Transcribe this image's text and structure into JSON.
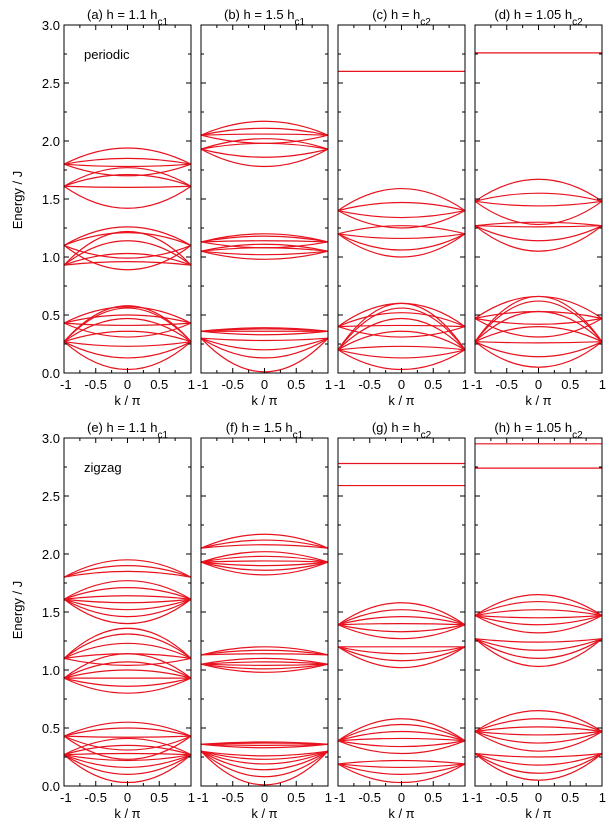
{
  "figure": {
    "ylabel": "Energy / J",
    "xlabel": "k / π",
    "y_ticks": [
      "0.0",
      "0.5",
      "1.0",
      "1.5",
      "2.0",
      "2.5",
      "3.0"
    ],
    "x_ticks": [
      "-1",
      "-0.5",
      "0",
      "0.5",
      "1"
    ],
    "line_color": "#e8121e"
  },
  "chart_data": [
    {
      "type": "line",
      "panel": "(a)",
      "title": "h = 1.1 h",
      "title_sub": "c1",
      "note": "periodic",
      "xlim": [
        -1,
        1
      ],
      "ylim": [
        0,
        3
      ],
      "series": [
        {
          "values": [
            [
              0.27,
              0.03
            ],
            [
              0.27,
              0.13
            ],
            [
              0.27,
              0.23
            ],
            [
              0.27,
              0.36
            ],
            [
              0.27,
              0.47
            ],
            [
              0.27,
              0.56
            ],
            [
              0.27,
              0.58
            ]
          ]
        },
        {
          "values": [
            [
              0.43,
              0.31
            ],
            [
              0.43,
              0.41
            ],
            [
              0.43,
              0.5
            ],
            [
              0.43,
              0.57
            ]
          ]
        },
        {
          "values": [
            [
              0.93,
              0.96
            ],
            [
              0.93,
              1.03
            ],
            [
              0.93,
              1.14
            ],
            [
              0.93,
              1.22
            ]
          ]
        },
        {
          "values": [
            [
              1.1,
              0.89
            ],
            [
              1.1,
              0.99
            ],
            [
              1.1,
              1.21
            ],
            [
              1.1,
              1.26
            ]
          ]
        },
        {
          "values": [
            [
              1.61,
              1.42
            ],
            [
              1.61,
              1.6
            ],
            [
              1.61,
              1.71
            ],
            [
              1.61,
              1.77
            ]
          ]
        },
        {
          "values": [
            [
              1.8,
              1.7
            ],
            [
              1.8,
              1.78
            ],
            [
              1.8,
              1.85
            ],
            [
              1.8,
              1.94
            ]
          ]
        }
      ]
    },
    {
      "type": "line",
      "panel": "(b)",
      "title": "h = 1.5 h",
      "title_sub": "c1",
      "note": "",
      "xlim": [
        -1,
        1
      ],
      "ylim": [
        0,
        3
      ],
      "series": [
        {
          "values": [
            [
              0.3,
              0.01
            ],
            [
              0.3,
              0.13
            ],
            [
              0.3,
              0.2
            ],
            [
              0.3,
              0.28
            ]
          ]
        },
        {
          "values": [
            [
              0.36,
              0.33
            ],
            [
              0.36,
              0.36
            ],
            [
              0.36,
              0.38
            ],
            [
              0.36,
              0.39
            ]
          ]
        },
        {
          "values": [
            [
              1.05,
              0.98
            ],
            [
              1.05,
              1.02
            ],
            [
              1.05,
              1.08
            ],
            [
              1.05,
              1.11
            ]
          ]
        },
        {
          "values": [
            [
              1.13,
              1.08
            ],
            [
              1.13,
              1.14
            ],
            [
              1.13,
              1.18
            ],
            [
              1.13,
              1.2
            ]
          ]
        },
        {
          "values": [
            [
              1.93,
              1.78
            ],
            [
              1.93,
              1.86
            ],
            [
              1.93,
              1.98
            ],
            [
              1.93,
              2.02
            ]
          ]
        },
        {
          "values": [
            [
              2.05,
              1.98
            ],
            [
              2.05,
              2.06
            ],
            [
              2.05,
              2.11
            ],
            [
              2.05,
              2.17
            ]
          ]
        }
      ]
    },
    {
      "type": "line",
      "panel": "(c)",
      "title": "h = h",
      "title_sub": "c2",
      "note": "",
      "xlim": [
        -1,
        1
      ],
      "ylim": [
        0,
        3
      ],
      "series": [
        {
          "values": [
            [
              0.2,
              0.03
            ],
            [
              0.2,
              0.13
            ],
            [
              0.2,
              0.23
            ],
            [
              0.2,
              0.36
            ],
            [
              0.2,
              0.47
            ],
            [
              0.2,
              0.56
            ],
            [
              0.2,
              0.6
            ]
          ]
        },
        {
          "values": [
            [
              0.4,
              0.31
            ],
            [
              0.4,
              0.41
            ],
            [
              0.4,
              0.52
            ],
            [
              0.4,
              0.6
            ]
          ]
        },
        {
          "values": [
            [
              1.2,
              1.0
            ],
            [
              1.2,
              1.06
            ],
            [
              1.2,
              1.16
            ],
            [
              1.2,
              1.27
            ]
          ]
        },
        {
          "values": [
            [
              1.4,
              1.25
            ],
            [
              1.4,
              1.34
            ],
            [
              1.4,
              1.47
            ],
            [
              1.4,
              1.59
            ]
          ]
        },
        {
          "values": [
            [
              2.6
            ]
          ]
        }
      ]
    },
    {
      "type": "line",
      "panel": "(d)",
      "title": "h = 1.05 h",
      "title_sub": "c2",
      "note": "",
      "xlim": [
        -1,
        1
      ],
      "ylim": [
        0,
        3
      ],
      "series": [
        {
          "values": [
            [
              0.27,
              0.05
            ],
            [
              0.27,
              0.14
            ],
            [
              0.27,
              0.26
            ],
            [
              0.27,
              0.4
            ],
            [
              0.27,
              0.53
            ],
            [
              0.27,
              0.62
            ],
            [
              0.27,
              0.66
            ]
          ]
        },
        {
          "values": [
            [
              0.47,
              0.31
            ],
            [
              0.47,
              0.42
            ],
            [
              0.47,
              0.53
            ],
            [
              0.47,
              0.66
            ]
          ]
        },
        {
          "values": [
            [
              1.27,
              1.05
            ],
            [
              1.27,
              1.14
            ],
            [
              1.27,
              1.26
            ],
            [
              1.27,
              1.3
            ]
          ]
        },
        {
          "values": [
            [
              1.48,
              1.28
            ],
            [
              1.48,
              1.44
            ],
            [
              1.48,
              1.55
            ],
            [
              1.48,
              1.67
            ]
          ]
        },
        {
          "values": [
            [
              2.76
            ]
          ]
        }
      ]
    },
    {
      "type": "line",
      "panel": "(e)",
      "title": "h = 1.1 h",
      "title_sub": "c1",
      "note": "zigzag",
      "xlim": [
        -1,
        1
      ],
      "ylim": [
        0,
        3
      ],
      "series": [
        {
          "values": [
            [
              0.27,
              0.03
            ],
            [
              0.27,
              0.1
            ],
            [
              0.27,
              0.16
            ],
            [
              0.27,
              0.22
            ],
            [
              0.27,
              0.28
            ],
            [
              0.27,
              0.35
            ],
            [
              0.27,
              0.41
            ]
          ]
        },
        {
          "values": [
            [
              0.43,
              0.23
            ],
            [
              0.43,
              0.31
            ],
            [
              0.43,
              0.42
            ],
            [
              0.43,
              0.5
            ],
            [
              0.43,
              0.55
            ]
          ]
        },
        {
          "values": [
            [
              0.93,
              0.8
            ],
            [
              0.93,
              0.86
            ],
            [
              0.93,
              0.93
            ],
            [
              0.93,
              1.0
            ],
            [
              0.93,
              1.07
            ],
            [
              0.93,
              1.14
            ]
          ]
        },
        {
          "values": [
            [
              1.1,
              1.04
            ],
            [
              1.1,
              1.14
            ],
            [
              1.1,
              1.23
            ],
            [
              1.1,
              1.31
            ],
            [
              1.1,
              1.36
            ]
          ]
        },
        {
          "values": [
            [
              1.61,
              1.4
            ],
            [
              1.61,
              1.46
            ],
            [
              1.61,
              1.52
            ],
            [
              1.61,
              1.58
            ],
            [
              1.61,
              1.64
            ],
            [
              1.61,
              1.71
            ],
            [
              1.61,
              1.77
            ]
          ]
        },
        {
          "values": [
            [
              1.8,
              1.85
            ],
            [
              1.8,
              1.9
            ],
            [
              1.8,
              1.95
            ]
          ]
        }
      ]
    },
    {
      "type": "line",
      "panel": "(f)",
      "title": "h = 1.5 h",
      "title_sub": "c1",
      "note": "",
      "xlim": [
        -1,
        1
      ],
      "ylim": [
        0,
        3
      ],
      "series": [
        {
          "values": [
            [
              0.3,
              0.01
            ],
            [
              0.3,
              0.08
            ],
            [
              0.3,
              0.14
            ],
            [
              0.3,
              0.19
            ],
            [
              0.3,
              0.23
            ],
            [
              0.3,
              0.26
            ]
          ]
        },
        {
          "values": [
            [
              0.36,
              0.33
            ],
            [
              0.36,
              0.35
            ],
            [
              0.36,
              0.37
            ],
            [
              0.36,
              0.38
            ]
          ]
        },
        {
          "values": [
            [
              1.05,
              0.98
            ],
            [
              1.05,
              1.01
            ],
            [
              1.05,
              1.04
            ],
            [
              1.05,
              1.07
            ],
            [
              1.05,
              1.1
            ]
          ]
        },
        {
          "values": [
            [
              1.13,
              1.14
            ],
            [
              1.13,
              1.17
            ],
            [
              1.13,
              1.2
            ]
          ]
        },
        {
          "values": [
            [
              1.93,
              1.82
            ],
            [
              1.93,
              1.86
            ],
            [
              1.93,
              1.9
            ],
            [
              1.93,
              1.94
            ],
            [
              1.93,
              1.98
            ],
            [
              1.93,
              2.02
            ]
          ]
        },
        {
          "values": [
            [
              2.05,
              2.08
            ],
            [
              2.05,
              2.12
            ],
            [
              2.05,
              2.17
            ]
          ]
        }
      ]
    },
    {
      "type": "line",
      "panel": "(g)",
      "title": "h = h",
      "title_sub": "c2",
      "note": "",
      "xlim": [
        -1,
        1
      ],
      "ylim": [
        0,
        3
      ],
      "series": [
        {
          "values": [
            [
              0.19,
              0.03
            ],
            [
              0.19,
              0.1
            ],
            [
              0.19,
              0.16
            ],
            [
              0.19,
              0.22
            ]
          ]
        },
        {
          "values": [
            [
              0.39,
              0.28
            ],
            [
              0.39,
              0.34
            ],
            [
              0.39,
              0.41
            ],
            [
              0.39,
              0.47
            ],
            [
              0.39,
              0.53
            ],
            [
              0.39,
              0.58
            ]
          ]
        },
        {
          "values": [
            [
              1.2,
              1.02
            ],
            [
              1.2,
              1.08
            ],
            [
              1.2,
              1.14
            ],
            [
              1.2,
              1.2
            ]
          ]
        },
        {
          "values": [
            [
              1.39,
              1.27
            ],
            [
              1.39,
              1.33
            ],
            [
              1.39,
              1.4
            ],
            [
              1.39,
              1.46
            ],
            [
              1.39,
              1.52
            ],
            [
              1.39,
              1.58
            ]
          ]
        },
        {
          "values": [
            [
              2.59
            ]
          ]
        },
        {
          "values": [
            [
              2.78
            ]
          ]
        }
      ]
    },
    {
      "type": "line",
      "panel": "(h)",
      "title": "h = 1.05 h",
      "title_sub": "c2",
      "note": "",
      "xlim": [
        -1,
        1
      ],
      "ylim": [
        0,
        3
      ],
      "series": [
        {
          "values": [
            [
              0.28,
              0.05
            ],
            [
              0.28,
              0.11
            ],
            [
              0.28,
              0.18
            ],
            [
              0.28,
              0.25
            ]
          ]
        },
        {
          "values": [
            [
              0.47,
              0.3
            ],
            [
              0.47,
              0.37
            ],
            [
              0.47,
              0.44
            ],
            [
              0.47,
              0.51
            ],
            [
              0.47,
              0.58
            ],
            [
              0.47,
              0.65
            ]
          ]
        },
        {
          "values": [
            [
              1.27,
              1.03
            ],
            [
              1.27,
              1.1
            ],
            [
              1.27,
              1.17
            ],
            [
              1.27,
              1.24
            ]
          ]
        },
        {
          "values": [
            [
              1.47,
              1.32
            ],
            [
              1.47,
              1.39
            ],
            [
              1.47,
              1.45
            ],
            [
              1.47,
              1.52
            ],
            [
              1.47,
              1.59
            ],
            [
              1.47,
              1.65
            ]
          ]
        },
        {
          "values": [
            [
              2.74
            ]
          ]
        },
        {
          "values": [
            [
              2.95
            ]
          ]
        }
      ]
    }
  ]
}
